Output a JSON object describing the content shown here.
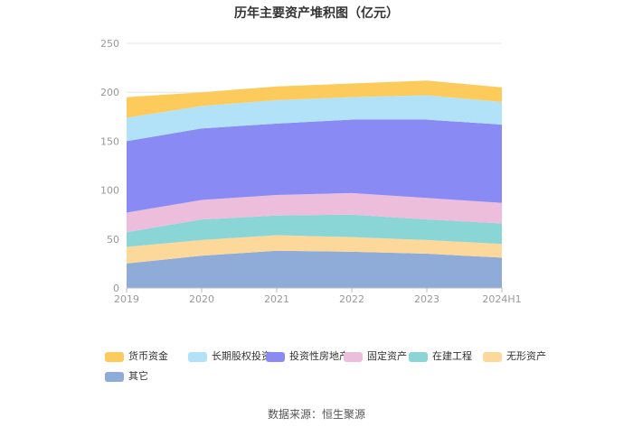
{
  "chart_data": {
    "type": "area",
    "stacked": true,
    "title": "历年主要资产堆积图（亿元）",
    "categories": [
      "2019",
      "2020",
      "2021",
      "2022",
      "2023",
      "2024H1"
    ],
    "ylim": [
      0,
      250
    ],
    "yticks": [
      0,
      50,
      100,
      150,
      200,
      250
    ],
    "grid": true,
    "legend_position": "bottom",
    "series": [
      {
        "name": "其它",
        "color": "#8fabd8",
        "values": [
          25,
          33,
          38,
          37,
          35,
          31
        ]
      },
      {
        "name": "无形资产",
        "color": "#fcd99b",
        "values": [
          17,
          16,
          16,
          15,
          14,
          14
        ]
      },
      {
        "name": "在建工程",
        "color": "#8ad6d6",
        "values": [
          15,
          21,
          20,
          23,
          21,
          21
        ]
      },
      {
        "name": "固定资产",
        "color": "#ecbedb",
        "values": [
          20,
          20,
          21,
          22,
          22,
          21
        ]
      },
      {
        "name": "投资性房地产",
        "color": "#8a8af5",
        "values": [
          73,
          73,
          73,
          75,
          80,
          80
        ]
      },
      {
        "name": "长期股权投资",
        "color": "#b2e2f7",
        "values": [
          24,
          23,
          24,
          23,
          25,
          23
        ]
      },
      {
        "name": "货币资金",
        "color": "#fdcb5b",
        "values": [
          21,
          14,
          14,
          14,
          15,
          15
        ]
      }
    ]
  },
  "legend_order": [
    "货币资金",
    "长期股权投资",
    "投资性房地产",
    "固定资产",
    "在建工程",
    "无形资产",
    "其它"
  ],
  "source_text": "数据来源：恒生聚源"
}
